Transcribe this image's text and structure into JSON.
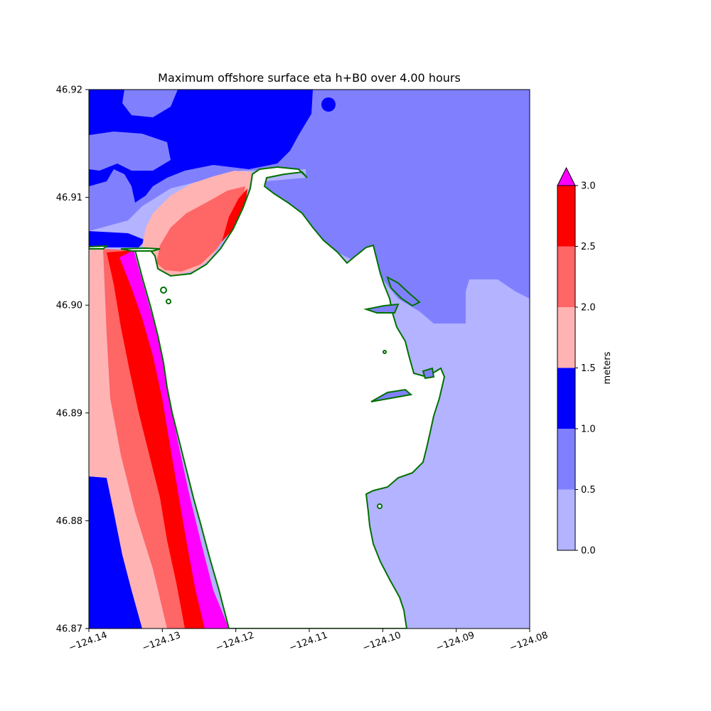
{
  "title": "Maximum offshore surface eta h+B0 over 4.00 hours",
  "map": {
    "x_range": [
      -124.14,
      -124.08
    ],
    "y_range": [
      46.87,
      46.92
    ],
    "x_ticks": [
      {
        "value": -124.14,
        "label": "−124.14"
      },
      {
        "value": -124.13,
        "label": "−124.13"
      },
      {
        "value": -124.12,
        "label": "−124.12"
      },
      {
        "value": -124.11,
        "label": "−124.11"
      },
      {
        "value": -124.1,
        "label": "−124.10"
      },
      {
        "value": -124.09,
        "label": "−124.09"
      },
      {
        "value": -124.08,
        "label": "−124.08"
      }
    ],
    "y_ticks": [
      {
        "value": 46.87,
        "label": "46.87"
      },
      {
        "value": 46.88,
        "label": "46.88"
      },
      {
        "value": 46.89,
        "label": "46.89"
      },
      {
        "value": 46.9,
        "label": "46.90"
      },
      {
        "value": 46.91,
        "label": "46.91"
      },
      {
        "value": 46.92,
        "label": "46.92"
      }
    ],
    "coastline_color": "#007000",
    "land_color": "#ffffff"
  },
  "colorbar": {
    "label": "meters",
    "ticks": [
      "0.0",
      "0.5",
      "1.0",
      "1.5",
      "2.0",
      "2.5",
      "3.0"
    ],
    "levels": [
      {
        "from": 0.0,
        "to": 0.5,
        "color": "#b3b3ff"
      },
      {
        "from": 0.5,
        "to": 1.0,
        "color": "#8080ff"
      },
      {
        "from": 1.0,
        "to": 1.5,
        "color": "#0000ff"
      },
      {
        "from": 1.5,
        "to": 2.0,
        "color": "#ffb3b3"
      },
      {
        "from": 2.0,
        "to": 2.5,
        "color": "#ff6666"
      },
      {
        "from": 2.5,
        "to": 3.0,
        "color": "#ff0000"
      }
    ],
    "extend_max_color": "#ff00ff"
  }
}
